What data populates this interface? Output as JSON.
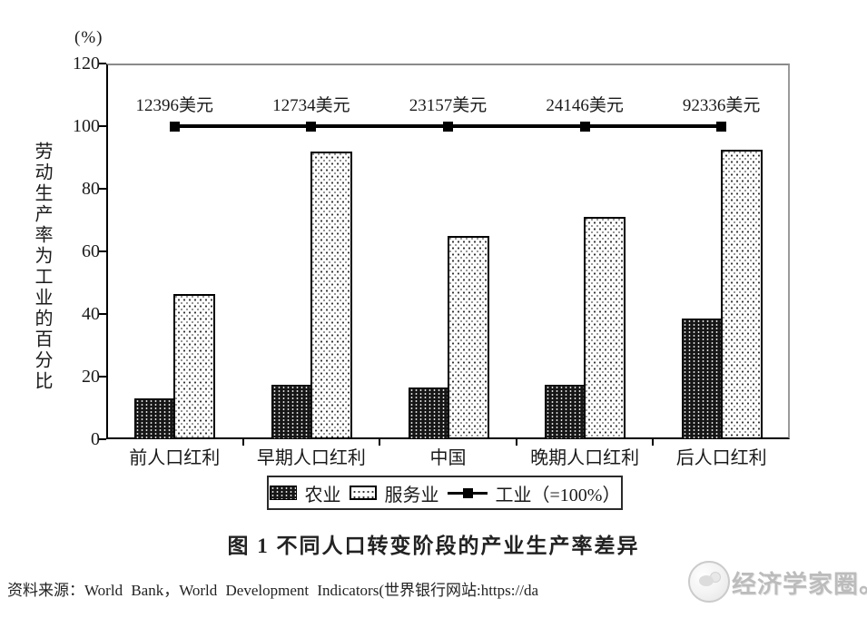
{
  "chart_data": {
    "type": "bar",
    "title": "图 1  不同人口转变阶段的产业生产率差异",
    "percent_unit_label": "(%)",
    "ylabel_vertical": "劳动生产率为工业的百分比",
    "categories": [
      "前人口红利",
      "早期人口红利",
      "中国",
      "晚期人口红利",
      "后人口红利"
    ],
    "series": [
      {
        "name": "农业",
        "type": "bar",
        "values": [
          13,
          17.5,
          16.5,
          17.5,
          38.5
        ]
      },
      {
        "name": "服务业",
        "type": "bar",
        "values": [
          46.5,
          92,
          65,
          71,
          92.5
        ]
      },
      {
        "name": "工业（=100%）",
        "type": "line",
        "values": [
          100,
          100,
          100,
          100,
          100
        ]
      }
    ],
    "point_labels": [
      "12396美元",
      "12734美元",
      "23157美元",
      "24146美元",
      "92336美元"
    ],
    "ylim": [
      0,
      120
    ],
    "ytick_step": 20,
    "grid": false,
    "legend_position": "bottom"
  },
  "legend": {
    "items": [
      {
        "label": "农业",
        "swatch": "agriculture-pattern"
      },
      {
        "label": "服务业",
        "swatch": "services-pattern"
      },
      {
        "label": "工业（=100%）",
        "swatch": "line-square-marker"
      }
    ]
  },
  "figure": {
    "caption": "图 1  不同人口转变阶段的产业生产率差异"
  },
  "source": {
    "text": "资料来源：World Bank，World Development Indicators(世界银行网站:https://da"
  },
  "watermark": {
    "text": "经济学家圈。"
  }
}
